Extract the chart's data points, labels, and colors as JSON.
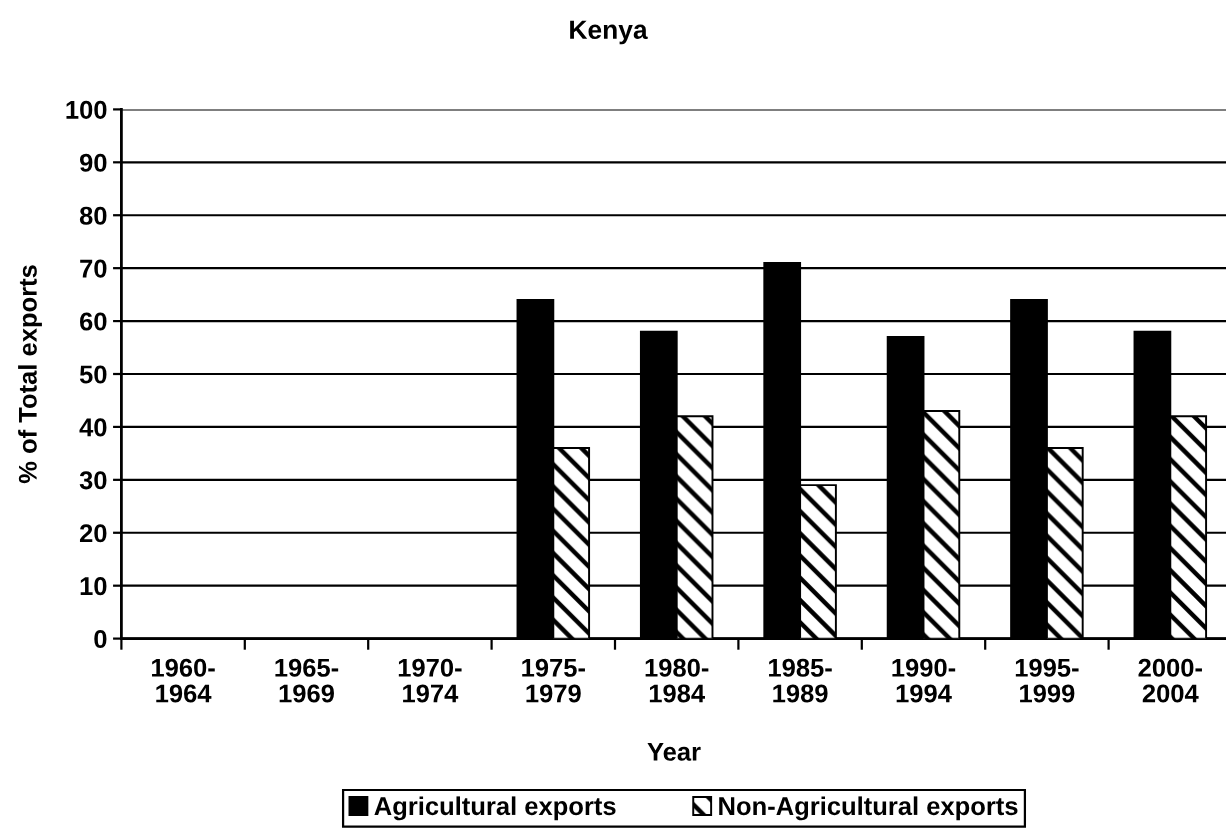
{
  "chart_data": {
    "type": "bar",
    "title": "Kenya",
    "xlabel": "Year",
    "ylabel": "% of Total exports",
    "categories": [
      "1960-\n1964",
      "1965-\n1969",
      "1970-\n1974",
      "1975-\n1979",
      "1980-\n1984",
      "1985-\n1989",
      "1990-\n1994",
      "1995-\n1999",
      "2000-\n2004"
    ],
    "series": [
      {
        "name": "Agricultural exports",
        "color": "#000000",
        "values": [
          null,
          null,
          null,
          64,
          58,
          71,
          57,
          64,
          58
        ]
      },
      {
        "name": "Non-Agricultural exports",
        "color": "#000000",
        "values": [
          null,
          null,
          null,
          36,
          42,
          29,
          43,
          36,
          42
        ]
      }
    ],
    "ylim": [
      0,
      100
    ],
    "yticks": [
      0,
      10,
      20,
      30,
      40,
      50,
      60,
      70,
      80,
      90,
      100
    ],
    "grid": "y",
    "legend": "bottom"
  }
}
